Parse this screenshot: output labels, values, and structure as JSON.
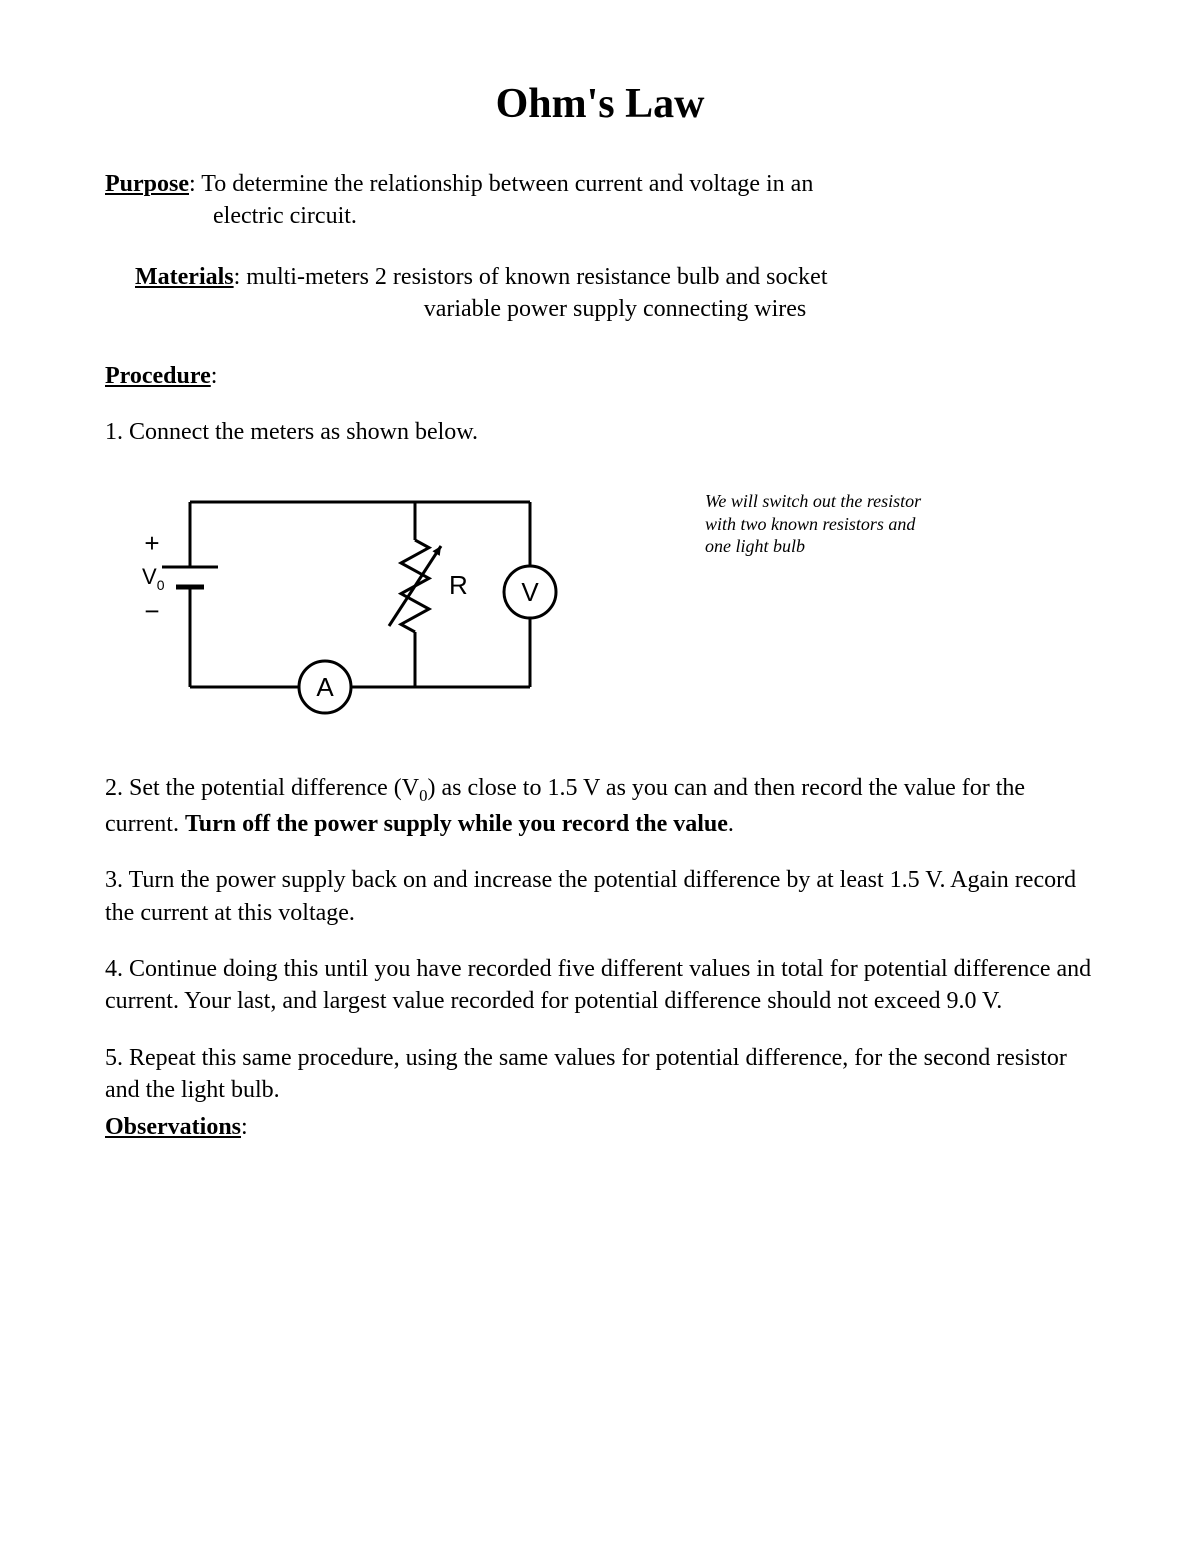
{
  "title": "Ohm's Law",
  "purpose": {
    "label": "Purpose",
    "line1": ": To determine the relationship between current and voltage in an",
    "line2": "electric circuit."
  },
  "materials": {
    "label": "Materials",
    "line1": ": multi-meters 2 resistors of known resistance bulb and socket",
    "line2": "variable power supply connecting wires"
  },
  "procedure": {
    "label": "Procedure",
    "step1": "1. Connect the meters as shown below.",
    "note": "We will switch out the resistor with two known resistors and one light bulb",
    "step2_a": "2. Set the potential difference (V",
    "step2_sub": "0",
    "step2_b": ") as close to 1.5 V as you can and then record the value for the current. ",
    "step2_bold": "Turn off the power supply while you record the value",
    "step2_end": ".",
    "step3": "3. Turn the power supply back on and increase the potential difference by at least 1.5 V. Again record the current at this voltage.",
    "step4": "4. Continue doing this until you have recorded five different values in total for potential difference and current. Your last, and largest value recorded for potential difference should not exceed 9.0 V.",
    "step5": "5. Repeat this same procedure, using the same values for potential difference, for the second resistor and the light bulb."
  },
  "observations": {
    "label": "Observations"
  },
  "circuit": {
    "type": "diagram",
    "stroke": "#000000",
    "stroke_width": 3,
    "background": "#ffffff",
    "battery_plus": "+",
    "battery_minus": "−",
    "battery_label": "V",
    "battery_sub": "0",
    "resistor_label": "R",
    "voltmeter_label": "V",
    "ammeter_label": "A",
    "meter_radius": 26,
    "label_fontsize": 26,
    "sign_fontsize": 26,
    "font_family": "Arial, Helvetica, sans-serif"
  }
}
